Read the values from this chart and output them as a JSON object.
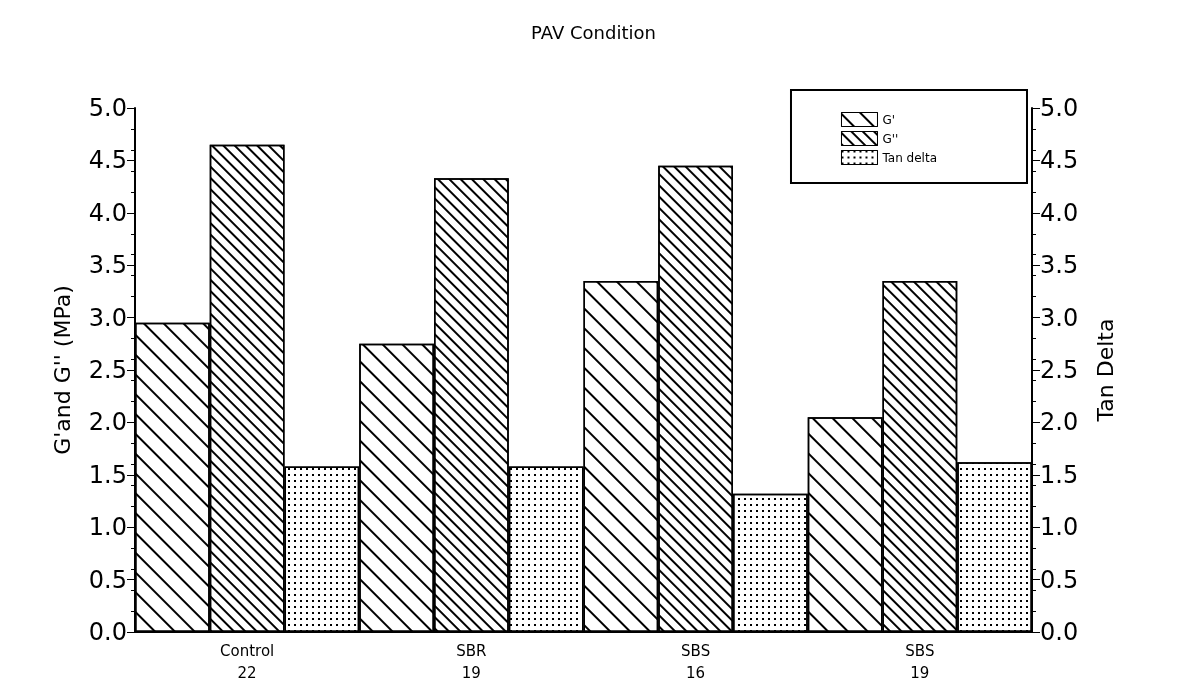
{
  "chart_data": {
    "type": "bar",
    "title": "PAV Condition",
    "ylabel": "G'and G'' (MPa)",
    "y2label": "Tan Delta",
    "categories": [
      "Control\n22",
      "SBR\n19",
      "SBS\n16",
      "SBS\n19"
    ],
    "series": [
      {
        "name": "G'",
        "color": "#ffffff",
        "values": [
          2.95,
          2.75,
          3.35,
          2.05
        ]
      },
      {
        "name": "G''",
        "color": "#ffffff",
        "values": [
          4.65,
          4.33,
          4.45,
          3.35
        ]
      },
      {
        "name": "Tan delta",
        "color": "#ffffff",
        "axis": "y2",
        "values": [
          1.58,
          1.58,
          1.32,
          1.62
        ]
      }
    ],
    "ylim": [
      0,
      5
    ],
    "yticks": [
      {
        "value": 0,
        "label": "0.0"
      },
      0.5,
      {
        "value": 1,
        "label": "1.0"
      },
      1.5,
      {
        "value": 2,
        "label": "2.0"
      },
      2.5,
      {
        "value": 3,
        "label": "3.0"
      },
      3.5,
      {
        "value": 4,
        "label": "4.0"
      },
      4.5,
      {
        "value": 5,
        "label": "5.0"
      }
    ],
    "y2lim": [
      0,
      5
    ],
    "y2ticks": [
      {
        "value": 0,
        "label": "0.0"
      },
      0.5,
      {
        "value": 1,
        "label": "1.0"
      },
      1.5,
      {
        "value": 2,
        "label": "2.0"
      },
      2.5,
      {
        "value": 3,
        "label": "3.0"
      },
      3.5,
      {
        "value": 4,
        "label": "4.0"
      },
      4.5,
      {
        "value": 5,
        "label": "5.0"
      }
    ],
    "grid": false,
    "legend": "top right"
  }
}
